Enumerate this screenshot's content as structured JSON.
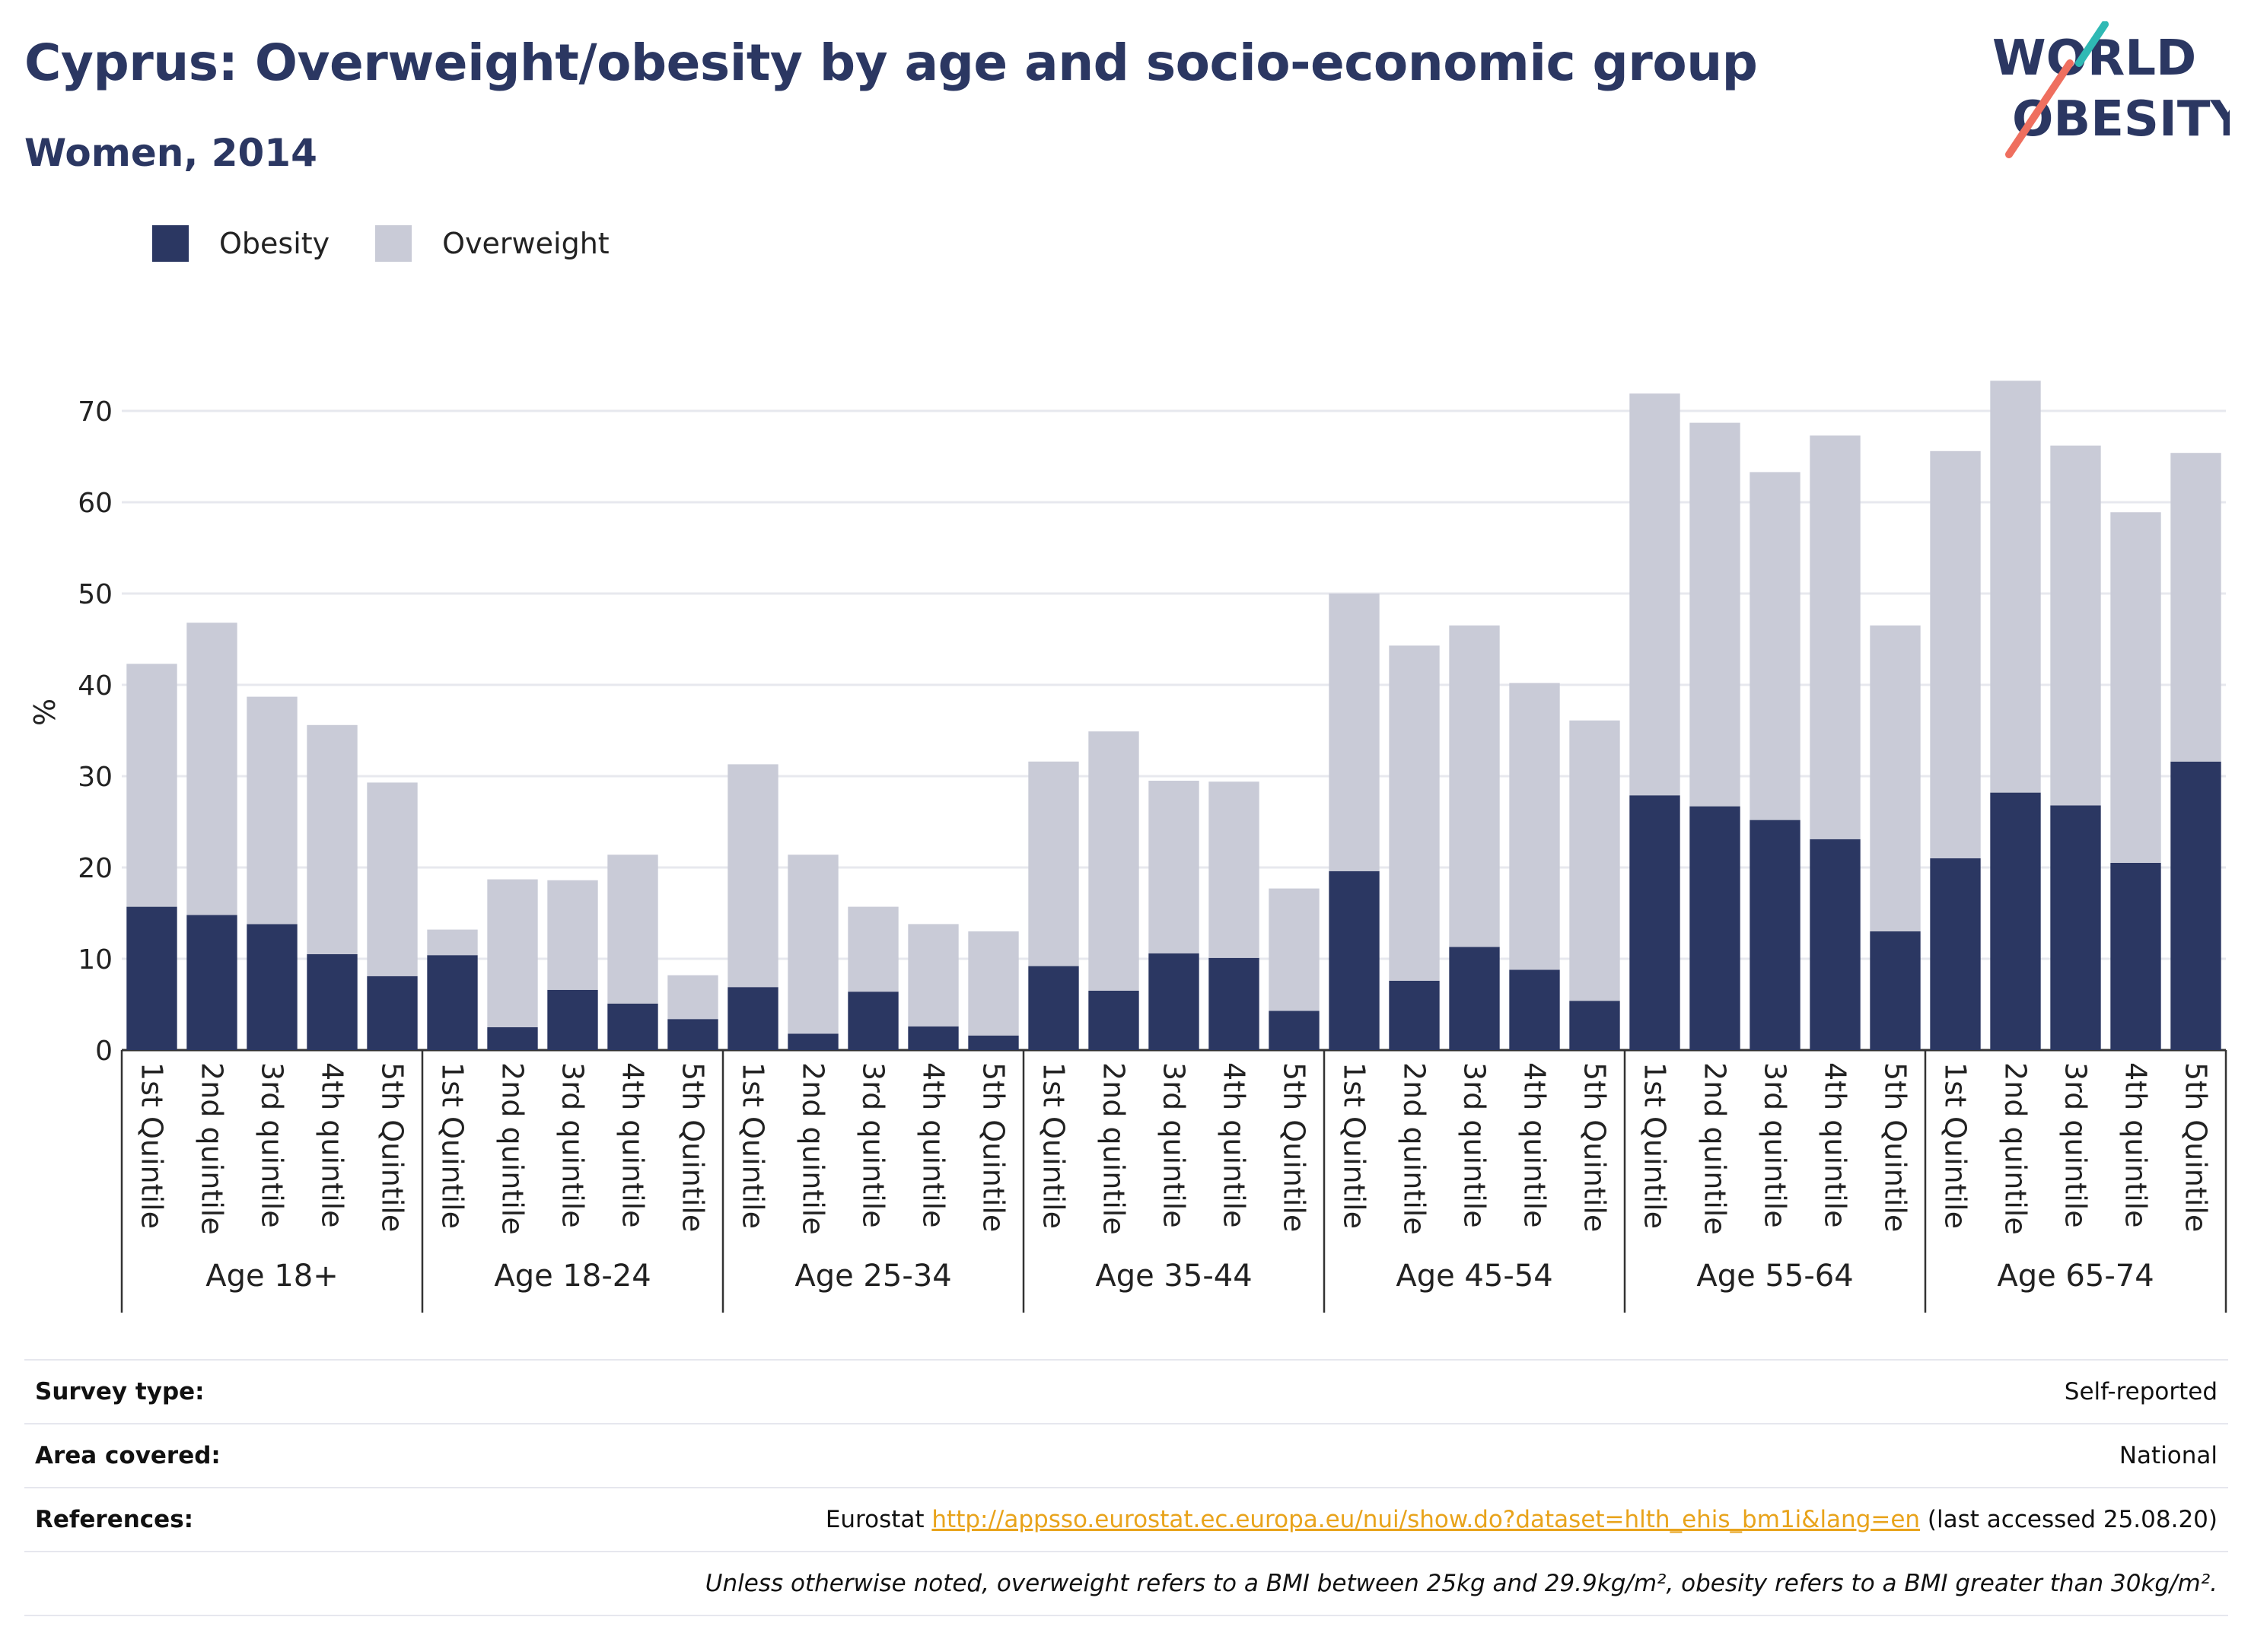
{
  "header": {
    "title": "Cyprus: Overweight/obesity by age and socio-economic group",
    "subtitle": "Women, 2014"
  },
  "logo": {
    "line1": "WORLD",
    "line2": "OBESITY"
  },
  "legend": [
    {
      "label": "Obesity",
      "color": "#2b3762"
    },
    {
      "label": "Overweight",
      "color": "#c9cbd7"
    }
  ],
  "chart_data": {
    "type": "bar",
    "stacked": true,
    "ylabel": "%",
    "ylim": [
      0,
      75
    ],
    "yticks": [
      0,
      10,
      20,
      30,
      40,
      50,
      60,
      70
    ],
    "grid": true,
    "groups": [
      {
        "label": "Age 18+",
        "categories": [
          "1st Quintile",
          "2nd quintile",
          "3rd quintile",
          "4th quintile",
          "5th Quintile"
        ]
      },
      {
        "label": "Age 18-24",
        "categories": [
          "1st Quintile",
          "2nd quintile",
          "3rd quintile",
          "4th quintile",
          "5th Quintile"
        ]
      },
      {
        "label": "Age 25-34",
        "categories": [
          "1st Quintile",
          "2nd quintile",
          "3rd quintile",
          "4th quintile",
          "5th Quintile"
        ]
      },
      {
        "label": "Age 35-44",
        "categories": [
          "1st Quintile",
          "2nd quintile",
          "3rd quintile",
          "4th quintile",
          "5th Quintile"
        ]
      },
      {
        "label": "Age 45-54",
        "categories": [
          "1st Quintile",
          "2nd quintile",
          "3rd quintile",
          "4th quintile",
          "5th Quintile"
        ]
      },
      {
        "label": "Age 55-64",
        "categories": [
          "1st Quintile",
          "2nd quintile",
          "3rd quintile",
          "4th quintile",
          "5th Quintile"
        ]
      },
      {
        "label": "Age 65-74",
        "categories": [
          "1st Quintile",
          "2nd quintile",
          "3rd quintile",
          "4th quintile",
          "5th Quintile"
        ]
      }
    ],
    "series": [
      {
        "name": "Obesity",
        "color": "#2b3762",
        "values": [
          15.7,
          14.8,
          13.8,
          10.5,
          8.1,
          10.4,
          2.5,
          6.6,
          5.1,
          3.4,
          6.9,
          1.8,
          6.4,
          2.6,
          1.6,
          9.2,
          6.5,
          10.6,
          10.1,
          4.3,
          19.6,
          7.6,
          11.3,
          8.8,
          5.4,
          27.9,
          26.7,
          25.2,
          23.1,
          13.0,
          21.0,
          28.2,
          26.8,
          20.5,
          31.6
        ]
      },
      {
        "name": "Overweight",
        "color": "#c9cbd7",
        "values": [
          26.6,
          32.0,
          24.9,
          25.1,
          21.2,
          2.8,
          16.2,
          12.0,
          16.3,
          4.8,
          24.4,
          19.6,
          9.3,
          11.2,
          11.4,
          22.4,
          28.4,
          18.9,
          19.3,
          13.4,
          30.4,
          36.7,
          35.2,
          31.4,
          30.7,
          44.0,
          42.0,
          38.1,
          44.2,
          33.5,
          44.6,
          45.1,
          39.4,
          38.4,
          33.8
        ]
      }
    ]
  },
  "footer": {
    "survey_type_label": "Survey type:",
    "survey_type_value": "Self-reported",
    "area_label": "Area covered:",
    "area_value": "National",
    "references_label": "References:",
    "references_prefix": "Eurostat ",
    "references_link": "http://appsso.eurostat.ec.europa.eu/nui/show.do?dataset=hlth_ehis_bm1i&lang=en",
    "references_suffix": " (last accessed 25.08.20)",
    "note": "Unless otherwise noted, overweight refers to a BMI between 25kg and 29.9kg/m², obesity refers to a BMI greater than 30kg/m²."
  }
}
